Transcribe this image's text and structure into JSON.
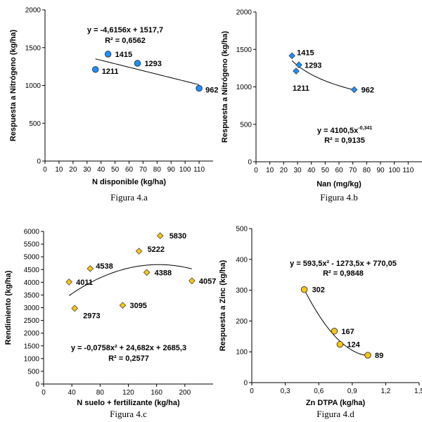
{
  "chart_data": [
    {
      "id": "a",
      "type": "scatter",
      "caption": "Figura 4.a",
      "xlabel": "N disponible (kg/ha)",
      "ylabel": "Respuesta a Nitrógeno (kg/ha)",
      "xlim": [
        0,
        120
      ],
      "ylim": [
        0,
        2000
      ],
      "xticks": [
        "0",
        "10",
        "20",
        "30",
        "40",
        "50",
        "60",
        "70",
        "80",
        "90",
        "100",
        "110"
      ],
      "xtick_values": [
        0,
        10,
        20,
        30,
        40,
        50,
        60,
        70,
        80,
        90,
        100,
        110
      ],
      "yticks": [
        "0",
        "500",
        "1000",
        "1500",
        "2000"
      ],
      "ytick_values": [
        0,
        500,
        1000,
        1500,
        2000
      ],
      "marker": "circle",
      "marker_color": "#1e90ff",
      "points": [
        {
          "x": 45,
          "y": 1415,
          "label": "1415"
        },
        {
          "x": 66,
          "y": 1293,
          "label": "1293"
        },
        {
          "x": 36,
          "y": 1211,
          "label": "1211"
        },
        {
          "x": 110,
          "y": 962,
          "label": "962"
        }
      ],
      "trend": {
        "kind": "linear",
        "a": -4.6156,
        "b": 1517.7,
        "x_from": 36,
        "x_to": 110
      },
      "equation": "y = -4,6156x + 1517,7",
      "r2": "R² = 0,6562"
    },
    {
      "id": "b",
      "type": "scatter",
      "caption": "Figura 4.b",
      "xlabel": "Nan (mg/kg)",
      "ylabel": "Respuesta a Nitrógeno (kg/ha)",
      "xlim": [
        0,
        120
      ],
      "ylim": [
        0,
        2000
      ],
      "xticks": [
        "0",
        "10",
        "20",
        "30",
        "40",
        "50",
        "60",
        "70",
        "80",
        "90",
        "100",
        "110"
      ],
      "xtick_values": [
        0,
        10,
        20,
        30,
        40,
        50,
        60,
        70,
        80,
        90,
        100,
        110
      ],
      "yticks": [
        "0",
        "500",
        "1000",
        "1500",
        "2000"
      ],
      "ytick_values": [
        0,
        500,
        1000,
        1500,
        2000
      ],
      "marker": "diamond",
      "marker_color": "#1e90ff",
      "points": [
        {
          "x": 26,
          "y": 1415,
          "label": "1415"
        },
        {
          "x": 31,
          "y": 1293,
          "label": "1293"
        },
        {
          "x": 29,
          "y": 1211,
          "label": "1211"
        },
        {
          "x": 71,
          "y": 962,
          "label": "962"
        }
      ],
      "trend": {
        "kind": "power",
        "a": 4100.5,
        "b": -0.341,
        "x_from": 26,
        "x_to": 71
      },
      "equation_base": "y = 4100,5x",
      "equation_exp": "-0,341",
      "r2": "R² = 0,9135"
    },
    {
      "id": "c",
      "type": "scatter",
      "caption": "Figura 4.c",
      "xlabel": "N suelo + fertilizante (kg/ha)",
      "ylabel": "Rendimiento (kg/ha)",
      "xlim": [
        0,
        240
      ],
      "ylim": [
        0,
        6000
      ],
      "xticks": [
        "0",
        "40",
        "80",
        "120",
        "160",
        "200"
      ],
      "xtick_values": [
        0,
        40,
        80,
        120,
        160,
        200
      ],
      "yticks": [
        "0",
        "500",
        "1000",
        "1500",
        "2000",
        "2500",
        "3000",
        "3500",
        "4000",
        "4500",
        "5000",
        "5500",
        "6000"
      ],
      "ytick_values": [
        0,
        500,
        1000,
        1500,
        2000,
        2500,
        3000,
        3500,
        4000,
        4500,
        5000,
        5500,
        6000
      ],
      "marker": "diamond",
      "marker_color": "#f5c518",
      "points": [
        {
          "x": 165,
          "y": 5830,
          "label": "5830"
        },
        {
          "x": 135,
          "y": 5222,
          "label": "5222"
        },
        {
          "x": 66,
          "y": 4538,
          "label": "4538"
        },
        {
          "x": 146,
          "y": 4388,
          "label": "4388"
        },
        {
          "x": 210,
          "y": 4057,
          "label": "4057"
        },
        {
          "x": 36,
          "y": 4011,
          "label": "4011"
        },
        {
          "x": 112,
          "y": 3095,
          "label": "3095"
        },
        {
          "x": 44,
          "y": 2973,
          "label": "2973"
        }
      ],
      "trend": {
        "kind": "poly2",
        "a": -0.0758,
        "b": 24.682,
        "c": 2685.3,
        "x_from": 36,
        "x_to": 210
      },
      "equation": "y = -0,0758x² + 24,682x + 2685,3",
      "r2": "R² = 0,2577"
    },
    {
      "id": "d",
      "type": "scatter",
      "caption": "Figura 4.d",
      "xlabel": "Zn DTPA (kg/ha)",
      "ylabel": "Respuesta a Zinc (kg/ha)",
      "xlim": [
        0,
        1.5
      ],
      "ylim": [
        0,
        500
      ],
      "xticks": [
        "0",
        "0,3",
        "0,6",
        "0,9",
        "1,2",
        "1,5"
      ],
      "xtick_values": [
        0,
        0.3,
        0.6,
        0.9,
        1.2,
        1.5
      ],
      "yticks": [
        "0",
        "100",
        "200",
        "300",
        "400",
        "500"
      ],
      "ytick_values": [
        0,
        100,
        200,
        300,
        400,
        500
      ],
      "marker": "circle",
      "marker_color": "#f5c518",
      "points": [
        {
          "x": 0.47,
          "y": 302,
          "label": "302"
        },
        {
          "x": 0.74,
          "y": 167,
          "label": "167"
        },
        {
          "x": 0.79,
          "y": 124,
          "label": "124"
        },
        {
          "x": 1.04,
          "y": 89,
          "label": "89"
        }
      ],
      "trend": {
        "kind": "poly2",
        "a": 593.5,
        "b": -1273.5,
        "c": 770.05,
        "x_from": 0.47,
        "x_to": 1.04
      },
      "equation": "y = 593,5x² - 1273,5x + 770,05",
      "r2": "R² = 0,9848"
    }
  ]
}
